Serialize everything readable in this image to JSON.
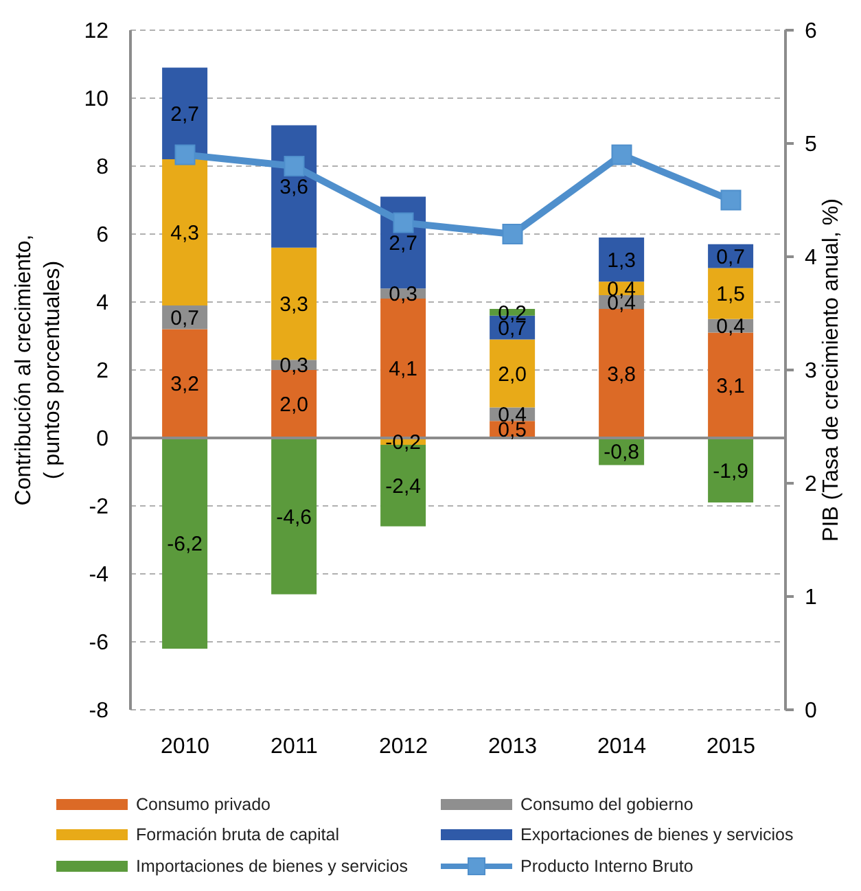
{
  "chart_data": {
    "type": "bar",
    "stacked": true,
    "categories": [
      "2010",
      "2011",
      "2012",
      "2013",
      "2014",
      "2015"
    ],
    "ylabel": "Contribución al crecimiento,\n( puntos porcentuales)",
    "y2label": "PIB (Tasa de crecimiento anual, %)",
    "ylim": [
      -8,
      12
    ],
    "yticks": [
      -8,
      -6,
      -4,
      -2,
      0,
      2,
      4,
      6,
      8,
      10,
      12
    ],
    "y2lim": [
      0,
      6
    ],
    "y2ticks": [
      0,
      1,
      2,
      3,
      4,
      5,
      6
    ],
    "grid": "y",
    "legend": "bottom",
    "series": [
      {
        "name": "Consumo privado",
        "color": "#dc6a26",
        "values": [
          3.2,
          2.0,
          4.1,
          0.5,
          3.8,
          3.1
        ],
        "value_labels": [
          "3,2",
          "2,0",
          "4,1",
          "0,5",
          "3,8",
          "3,1"
        ]
      },
      {
        "name": "Consumo del gobierno",
        "color": "#8f8f8f",
        "values": [
          0.7,
          0.3,
          0.3,
          0.4,
          0.4,
          0.4
        ],
        "value_labels": [
          "0,7",
          "0,3",
          "0,3",
          "0,4",
          "0,4",
          "0,4"
        ]
      },
      {
        "name": "Formación bruta de capital",
        "color": "#e8aa18",
        "values": [
          4.3,
          3.3,
          -0.2,
          2.0,
          0.4,
          1.5
        ],
        "value_labels": [
          "4,3",
          "3,3",
          "-0,2",
          "2,0",
          "0,4",
          "1,5"
        ]
      },
      {
        "name": "Exportaciones de bienes y servicios",
        "color": "#2f5aa8",
        "values": [
          2.7,
          3.6,
          2.7,
          0.7,
          1.3,
          0.7
        ],
        "value_labels": [
          "2,7",
          "3,6",
          "2,7",
          "0,7",
          "1,3",
          "0,7"
        ]
      },
      {
        "name": "Importaciones de bienes y servicios",
        "color": "#5b9a3c",
        "values": [
          -6.2,
          -4.6,
          -2.4,
          0.2,
          -0.8,
          -1.9
        ],
        "value_labels": [
          "-6,2",
          "-4,6",
          "-2,4",
          "0,2",
          "-0,8",
          "-1,9"
        ]
      },
      {
        "name": "Producto Interno Bruto",
        "type": "line",
        "axis": "y2",
        "color": "#4f8fcc",
        "marker": "square",
        "values": [
          4.9,
          4.8,
          4.3,
          4.2,
          4.9,
          4.5
        ]
      }
    ]
  }
}
